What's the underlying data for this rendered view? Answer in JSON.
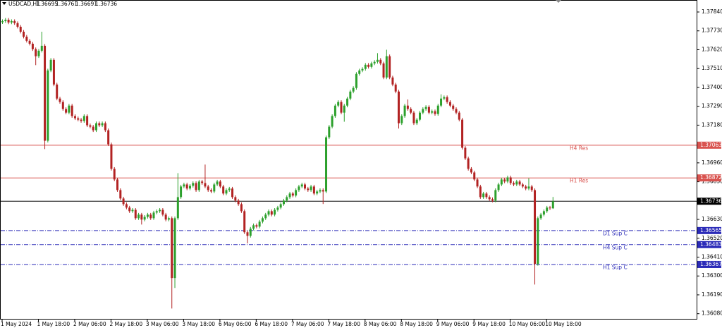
{
  "chart_data": {
    "type": "candlestick",
    "title": "USDCAD,H1",
    "categories": [
      "1 May 2024",
      null,
      null,
      null,
      null,
      null,
      null,
      null,
      null,
      null,
      null,
      null,
      "1 May 18:00",
      null,
      null,
      null,
      null,
      null,
      null,
      null,
      null,
      null,
      null,
      null,
      "2 May 06:00",
      null,
      null,
      null,
      null,
      null,
      null,
      null,
      null,
      null,
      null,
      null,
      "2 May 18:00",
      null,
      null,
      null,
      null,
      null,
      null,
      null,
      null,
      null,
      null,
      null,
      "3 May 06:00",
      null,
      null,
      null,
      null,
      null,
      null,
      null,
      null,
      null,
      null,
      null,
      "3 May 18:00",
      null,
      null,
      null,
      null,
      null,
      null,
      null,
      null,
      null,
      null,
      null,
      "6 May 06:00",
      null,
      null,
      null,
      null,
      null,
      null,
      null,
      null,
      null,
      null,
      null,
      "6 May 18:00",
      null,
      null,
      null,
      null,
      null,
      null,
      null,
      null,
      null,
      null,
      null,
      "7 May 06:00",
      null,
      null,
      null,
      null,
      null,
      null,
      null,
      null,
      null,
      null,
      null,
      "7 May 18:00",
      null,
      null,
      null,
      null,
      null,
      null,
      null,
      null,
      null,
      null,
      null,
      "8 May 06:00",
      null,
      null,
      null,
      null,
      null,
      null,
      null,
      null,
      null,
      null,
      null,
      "8 May 18:00",
      null,
      null,
      null,
      null,
      null,
      null,
      null,
      null,
      null,
      null,
      null,
      "9 May 06:00",
      null,
      null,
      null,
      null,
      null,
      null,
      null,
      null,
      null,
      null,
      null,
      "9 May 18:00",
      null,
      null,
      null,
      null,
      null,
      null,
      null,
      null,
      null,
      null,
      null,
      "10 May 06:00",
      null,
      null,
      null,
      null,
      null,
      null,
      null,
      null,
      null,
      null,
      null,
      "10 May 18:00",
      null,
      null
    ],
    "open": [
      1.3778,
      1.37787,
      1.37795,
      1.37779,
      1.37787,
      1.37775,
      1.37754,
      1.37725,
      1.37696,
      1.37672,
      1.37655,
      1.37623,
      1.37582,
      1.37614,
      1.37643,
      1.37089,
      1.37499,
      1.37561,
      1.37417,
      1.37335,
      1.37315,
      1.37274,
      1.37253,
      1.37294,
      1.37233,
      1.3722,
      1.37212,
      1.37204,
      1.37233,
      1.37179,
      1.37171,
      1.3715,
      1.37191,
      1.37179,
      1.37191,
      1.3715,
      1.37068,
      1.36925,
      1.36863,
      1.36801,
      1.36752,
      1.36719,
      1.36699,
      1.36678,
      1.36686,
      1.36637,
      1.36658,
      1.36629,
      1.36645,
      1.36658,
      1.36637,
      1.3667,
      1.36678,
      1.36686,
      1.36658,
      1.36629,
      1.36637,
      1.36288,
      1.36637,
      1.3676,
      1.36822,
      1.36834,
      1.3681,
      1.36826,
      1.36842,
      1.36801,
      1.36851,
      1.36842,
      1.36822,
      1.36801,
      1.36793,
      1.36834,
      1.36851,
      1.36822,
      1.36781,
      1.36801,
      1.3681,
      1.3676,
      1.3674,
      1.36719,
      1.36678,
      1.36555,
      1.36534,
      1.36576,
      1.36596,
      1.36588,
      1.36617,
      1.36637,
      1.36658,
      1.36678,
      1.36658,
      1.36686,
      1.36699,
      1.36719,
      1.3674,
      1.3676,
      1.36781,
      1.36769,
      1.36801,
      1.36822,
      1.36834,
      1.3681,
      1.36801,
      1.36822,
      1.36781,
      1.36793,
      1.36801,
      1.36793,
      1.37109,
      1.37171,
      1.37233,
      1.37294,
      1.37315,
      1.37253,
      1.37294,
      1.37335,
      1.37376,
      1.37397,
      1.37479,
      1.37499,
      1.37508,
      1.37532,
      1.3752,
      1.3754,
      1.37549,
      1.37561,
      1.3754,
      1.37458,
      1.37582,
      1.37458,
      1.37417,
      1.37376,
      1.37191,
      1.37233,
      1.37294,
      1.37274,
      1.37253,
      1.37191,
      1.37212,
      1.37253,
      1.37274,
      1.37286,
      1.37253,
      1.37261,
      1.37245,
      1.37294,
      1.37335,
      1.37343,
      1.37315,
      1.37294,
      1.37274,
      1.37253,
      1.37212,
      1.37048,
      1.36986,
      1.36925,
      1.36904,
      1.36863,
      1.36822,
      1.3676,
      1.36781,
      1.3676,
      1.36748,
      1.3674,
      1.36801,
      1.36834,
      1.36863,
      1.36851,
      1.36875,
      1.36842,
      1.36834,
      1.36851,
      1.36834,
      1.36822,
      1.3681,
      1.36822,
      1.36801,
      1.3637,
      1.36637,
      1.36658,
      1.36678,
      1.36699,
      1.36695
    ],
    "high": [
      1.37797,
      1.37805,
      1.37805,
      1.37797,
      1.37797,
      1.37785,
      1.37764,
      1.37735,
      1.37706,
      1.37682,
      1.37665,
      1.37633,
      1.37624,
      1.37725,
      1.37653,
      1.37509,
      1.37571,
      1.37571,
      1.37427,
      1.37345,
      1.37325,
      1.37284,
      1.37304,
      1.37304,
      1.37243,
      1.3723,
      1.37222,
      1.37243,
      1.37243,
      1.37189,
      1.37181,
      1.37201,
      1.37201,
      1.37201,
      1.37201,
      1.3716,
      1.37078,
      1.36935,
      1.36873,
      1.36811,
      1.36762,
      1.36729,
      1.36709,
      1.36696,
      1.36696,
      1.36668,
      1.36668,
      1.36655,
      1.36668,
      1.36668,
      1.3668,
      1.36688,
      1.36696,
      1.36696,
      1.36668,
      1.36647,
      1.36647,
      1.36647,
      1.369,
      1.36832,
      1.36844,
      1.36844,
      1.36836,
      1.36852,
      1.36852,
      1.36861,
      1.36861,
      1.3695,
      1.36832,
      1.36811,
      1.36844,
      1.36861,
      1.36861,
      1.36832,
      1.36811,
      1.3682,
      1.3682,
      1.3677,
      1.3675,
      1.36729,
      1.36688,
      1.36565,
      1.36586,
      1.36606,
      1.36606,
      1.36627,
      1.36647,
      1.36668,
      1.36688,
      1.36688,
      1.36696,
      1.36709,
      1.36729,
      1.3675,
      1.3677,
      1.36791,
      1.36791,
      1.36811,
      1.36832,
      1.36844,
      1.36844,
      1.3682,
      1.36832,
      1.36832,
      1.36803,
      1.36811,
      1.36811,
      1.37119,
      1.37181,
      1.37243,
      1.37304,
      1.37325,
      1.37325,
      1.37304,
      1.37345,
      1.37386,
      1.37407,
      1.37489,
      1.37509,
      1.37518,
      1.37542,
      1.37542,
      1.3755,
      1.37559,
      1.376,
      1.37571,
      1.3755,
      1.3762,
      1.37592,
      1.37468,
      1.37427,
      1.37386,
      1.37243,
      1.37304,
      1.3733,
      1.37284,
      1.37263,
      1.37222,
      1.37263,
      1.37284,
      1.37296,
      1.37296,
      1.37271,
      1.37271,
      1.37304,
      1.3736,
      1.37353,
      1.37353,
      1.37325,
      1.37304,
      1.37284,
      1.37263,
      1.37222,
      1.37058,
      1.36996,
      1.36935,
      1.36914,
      1.36873,
      1.36832,
      1.36791,
      1.36791,
      1.3677,
      1.36758,
      1.36811,
      1.36844,
      1.36873,
      1.36873,
      1.36885,
      1.36885,
      1.36852,
      1.36861,
      1.36861,
      1.36844,
      1.36832,
      1.3687,
      1.36832,
      1.36811,
      1.36647,
      1.36668,
      1.36688,
      1.36709,
      1.36709,
      1.36761
    ],
    "low": [
      1.3777,
      1.37777,
      1.37769,
      1.37769,
      1.37765,
      1.37744,
      1.37715,
      1.37686,
      1.37662,
      1.37645,
      1.37613,
      1.3753,
      1.37572,
      1.37604,
      1.3704,
      1.37079,
      1.37489,
      1.37407,
      1.37325,
      1.37305,
      1.37264,
      1.37243,
      1.37243,
      1.37223,
      1.3721,
      1.37202,
      1.37194,
      1.37194,
      1.37169,
      1.37161,
      1.3714,
      1.3714,
      1.37169,
      1.37169,
      1.3714,
      1.37058,
      1.36915,
      1.36853,
      1.36791,
      1.36742,
      1.36709,
      1.36689,
      1.36668,
      1.36668,
      1.36627,
      1.36627,
      1.366,
      1.36619,
      1.36635,
      1.36627,
      1.36627,
      1.3666,
      1.36668,
      1.36648,
      1.36619,
      1.36619,
      1.3611,
      1.3623,
      1.36627,
      1.3675,
      1.36812,
      1.368,
      1.368,
      1.36816,
      1.36791,
      1.36791,
      1.36832,
      1.36812,
      1.36791,
      1.36783,
      1.36783,
      1.36824,
      1.36812,
      1.36771,
      1.36771,
      1.36791,
      1.3675,
      1.3673,
      1.36709,
      1.36668,
      1.36545,
      1.3649,
      1.36524,
      1.36566,
      1.36578,
      1.36578,
      1.36607,
      1.36627,
      1.36648,
      1.36648,
      1.36648,
      1.36676,
      1.36689,
      1.36709,
      1.3673,
      1.3675,
      1.36759,
      1.36759,
      1.36791,
      1.36812,
      1.368,
      1.36791,
      1.36791,
      1.36771,
      1.36771,
      1.36783,
      1.3672,
      1.36783,
      1.37099,
      1.37161,
      1.37223,
      1.37284,
      1.37243,
      1.372,
      1.37284,
      1.37325,
      1.37366,
      1.37387,
      1.37469,
      1.37489,
      1.37498,
      1.3751,
      1.3751,
      1.3753,
      1.37539,
      1.3753,
      1.37448,
      1.37448,
      1.37448,
      1.37407,
      1.37366,
      1.3716,
      1.37181,
      1.37223,
      1.37264,
      1.37243,
      1.37181,
      1.37181,
      1.37202,
      1.37243,
      1.37264,
      1.37243,
      1.37243,
      1.37235,
      1.37235,
      1.37284,
      1.37325,
      1.37305,
      1.37284,
      1.37264,
      1.37243,
      1.37202,
      1.37038,
      1.36976,
      1.36915,
      1.36894,
      1.36853,
      1.36812,
      1.3675,
      1.3675,
      1.3675,
      1.36738,
      1.3673,
      1.3673,
      1.36791,
      1.36824,
      1.36841,
      1.36841,
      1.36832,
      1.36824,
      1.36824,
      1.36824,
      1.36812,
      1.368,
      1.368,
      1.36791,
      1.3625,
      1.3636,
      1.36627,
      1.36648,
      1.36668,
      1.36685,
      1.36691
    ],
    "close": [
      1.37787,
      1.37795,
      1.37779,
      1.37787,
      1.37775,
      1.37754,
      1.37725,
      1.37696,
      1.37672,
      1.37655,
      1.37623,
      1.37582,
      1.37614,
      1.37643,
      1.37089,
      1.37499,
      1.37561,
      1.37417,
      1.37335,
      1.37315,
      1.37274,
      1.37253,
      1.37294,
      1.37233,
      1.3722,
      1.37212,
      1.37204,
      1.37233,
      1.37179,
      1.37171,
      1.3715,
      1.37191,
      1.37179,
      1.37191,
      1.3715,
      1.37068,
      1.36925,
      1.36863,
      1.36801,
      1.36752,
      1.36719,
      1.36699,
      1.36678,
      1.36686,
      1.36637,
      1.36658,
      1.36629,
      1.36645,
      1.36658,
      1.36637,
      1.3667,
      1.36678,
      1.36686,
      1.36658,
      1.36629,
      1.36637,
      1.36288,
      1.36637,
      1.3676,
      1.36822,
      1.36834,
      1.3681,
      1.36826,
      1.36842,
      1.36801,
      1.36851,
      1.36842,
      1.36822,
      1.36801,
      1.36793,
      1.36834,
      1.36851,
      1.36822,
      1.36781,
      1.36801,
      1.3681,
      1.3676,
      1.3674,
      1.36719,
      1.36678,
      1.36555,
      1.36534,
      1.36576,
      1.36596,
      1.36588,
      1.36617,
      1.36637,
      1.36658,
      1.36678,
      1.36658,
      1.36686,
      1.36699,
      1.36719,
      1.3674,
      1.3676,
      1.36781,
      1.36769,
      1.36801,
      1.36822,
      1.36834,
      1.3681,
      1.36801,
      1.36822,
      1.36781,
      1.36793,
      1.36801,
      1.36793,
      1.37109,
      1.37171,
      1.37233,
      1.37294,
      1.37315,
      1.37253,
      1.37294,
      1.37335,
      1.37376,
      1.37397,
      1.37479,
      1.37499,
      1.37508,
      1.37532,
      1.3752,
      1.3754,
      1.37549,
      1.37561,
      1.3754,
      1.37458,
      1.37582,
      1.37458,
      1.37417,
      1.37376,
      1.37191,
      1.37233,
      1.37294,
      1.37274,
      1.37253,
      1.37191,
      1.37212,
      1.37253,
      1.37274,
      1.37286,
      1.37253,
      1.37261,
      1.37245,
      1.37294,
      1.37335,
      1.37343,
      1.37315,
      1.37294,
      1.37274,
      1.37253,
      1.37212,
      1.37048,
      1.36986,
      1.36925,
      1.36904,
      1.36863,
      1.36822,
      1.3676,
      1.36781,
      1.3676,
      1.36748,
      1.3674,
      1.36801,
      1.36834,
      1.36863,
      1.36851,
      1.36875,
      1.36842,
      1.36834,
      1.36851,
      1.36834,
      1.36822,
      1.3681,
      1.36822,
      1.36801,
      1.3637,
      1.36637,
      1.36658,
      1.36678,
      1.36699,
      1.36695,
      1.36736
    ],
    "up_color": "#2ca02c",
    "down_color": "#b22222",
    "ylim": [
      1.3605,
      1.3791
    ],
    "yticks": [
      {
        "value": 1.3784,
        "label": "1.37840"
      },
      {
        "value": 1.3773,
        "label": "1.37730"
      },
      {
        "value": 1.3762,
        "label": "1.37620"
      },
      {
        "value": 1.3751,
        "label": "1.37510"
      },
      {
        "value": 1.374,
        "label": "1.37400"
      },
      {
        "value": 1.3729,
        "label": "1.37290"
      },
      {
        "value": 1.3718,
        "label": "1.37180"
      },
      {
        "value": 1.3696,
        "label": "1.36960"
      },
      {
        "value": 1.3685,
        "label": "1.36850"
      },
      {
        "value": 1.3663,
        "label": "1.36630"
      },
      {
        "value": 1.3652,
        "label": "1.36520"
      },
      {
        "value": 1.3641,
        "label": "1.36410"
      },
      {
        "value": 1.363,
        "label": "1.36300"
      },
      {
        "value": 1.3619,
        "label": "1.36190"
      },
      {
        "value": 1.3608,
        "label": "1.36080"
      }
    ],
    "grid": false,
    "levels": [
      {
        "name": "H4 Res",
        "value": 1.37063,
        "color": "#d9534f",
        "style": "solid"
      },
      {
        "name": "H1 Res",
        "value": 1.36872,
        "color": "#d9534f",
        "style": "solid"
      },
      {
        "value": 1.36736,
        "color": "#000000",
        "style": "solid"
      },
      {
        "name": "D1 Sup C",
        "value": 1.36565,
        "color": "#2b2bb8",
        "style": "dashdot"
      },
      {
        "name": "H4 Sup C",
        "value": 1.36483,
        "color": "#2b2bb8",
        "style": "dashdot"
      },
      {
        "name": "H1 Sup C",
        "value": 1.36367,
        "color": "#2b2bb8",
        "style": "dashdot"
      }
    ]
  }
}
